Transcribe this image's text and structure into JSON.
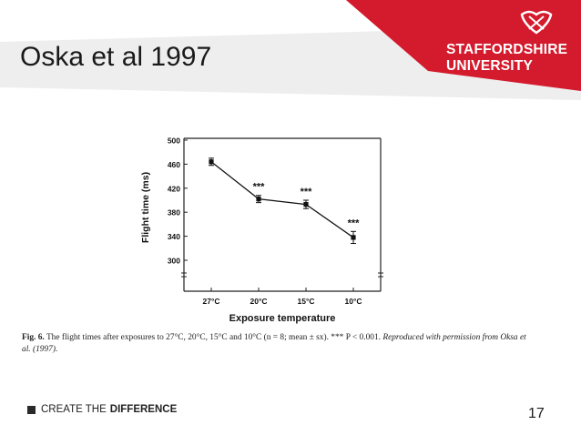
{
  "slide": {
    "title": "Oska et al 1997",
    "page_number": "17",
    "brand_line1": "STAFFORDSHIRE",
    "brand_line2": "UNIVERSITY",
    "footer_prefix": "CREATE THE",
    "footer_emphasis": "DIFFERENCE",
    "colors": {
      "brand_red": "#d41a2d",
      "banner_grey": "#eeeeee"
    }
  },
  "caption": {
    "fig_label": "Fig. 6.",
    "text": "The flight times after exposures to 27°C, 20°C, 15°C and 10°C (n = 8; mean ± sx). *** P < 0.001.",
    "italic": "Reproduced with permission from Oksa et al. (1997)."
  },
  "chart_data": {
    "type": "line",
    "xlabel": "Exposure temperature",
    "ylabel": "Flight time (ms)",
    "categories": [
      "27°C",
      "20°C",
      "15°C",
      "10°C"
    ],
    "y_ticks": [
      300,
      340,
      380,
      420,
      460,
      500
    ],
    "ylim": [
      280,
      500
    ],
    "values": [
      464,
      402,
      393,
      338
    ],
    "errors": [
      6,
      6,
      7,
      10
    ],
    "significance": [
      "",
      "***",
      "***",
      "***"
    ],
    "grid": false
  }
}
